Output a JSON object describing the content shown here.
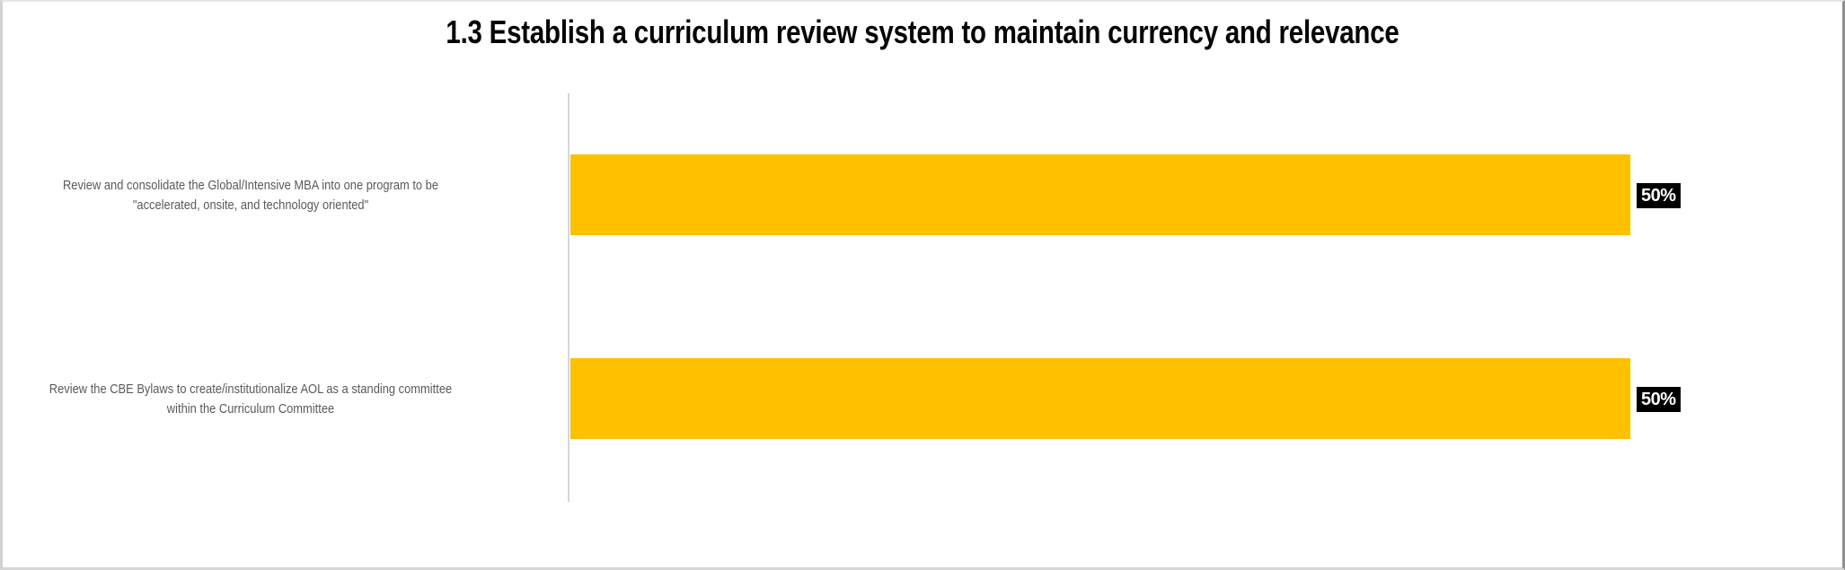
{
  "chart_data": {
    "type": "bar",
    "orientation": "horizontal",
    "title": "1.3 Establish a curriculum review system to maintain currency and relevance",
    "categories": [
      "Review and consolidate the Global/Intensive MBA into one program to be \"accelerated, onsite, and technology oriented\"",
      "Review the CBE Bylaws to create/institutionalize AOL as a standing committee within the Curriculum Committee"
    ],
    "values": [
      50,
      50
    ],
    "value_labels": [
      "50%",
      "50%"
    ],
    "unit": "percent",
    "xlim": [
      0,
      50
    ],
    "grid": false,
    "legend": false,
    "colors": {
      "bar_fill": "#FFC000",
      "title_text": "#050505",
      "category_label_text": "#595959",
      "axis_line": "#D6D6D6",
      "data_label_background": "#000000",
      "data_label_text": "#FFFFFF"
    }
  }
}
